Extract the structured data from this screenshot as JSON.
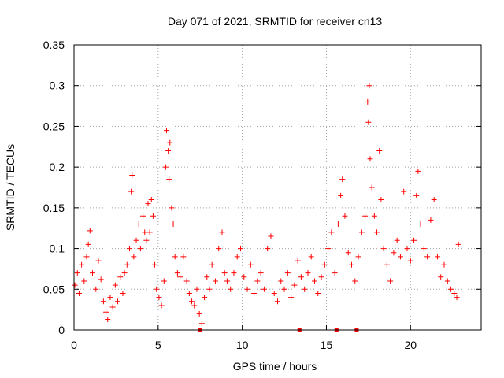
{
  "chart_data": {
    "type": "scatter",
    "title": "Day 071 of 2021, SRMTID for receiver cn13",
    "xlabel": "GPS time / hours",
    "ylabel": "SRMTID / TECUs",
    "xlim": [
      0,
      24.2
    ],
    "ylim": [
      0,
      0.35
    ],
    "x_ticks": [
      0,
      5,
      10,
      15,
      20
    ],
    "y_ticks": [
      0,
      0.05,
      0.1,
      0.15,
      0.2,
      0.25,
      0.3,
      0.35
    ],
    "grid": true,
    "marker": "+",
    "color": "#ff0000",
    "series": [
      {
        "name": "cn13",
        "points": [
          [
            0.05,
            0.055
          ],
          [
            0.2,
            0.07
          ],
          [
            0.3,
            0.045
          ],
          [
            0.45,
            0.08
          ],
          [
            0.6,
            0.06
          ],
          [
            0.75,
            0.09
          ],
          [
            0.85,
            0.105
          ],
          [
            0.95,
            0.122
          ],
          [
            1.1,
            0.07
          ],
          [
            1.3,
            0.05
          ],
          [
            1.45,
            0.085
          ],
          [
            1.6,
            0.062
          ],
          [
            1.75,
            0.035
          ],
          [
            1.9,
            0.022
          ],
          [
            2.0,
            0.013
          ],
          [
            2.15,
            0.04
          ],
          [
            2.3,
            0.028
          ],
          [
            2.45,
            0.055
          ],
          [
            2.6,
            0.035
          ],
          [
            2.75,
            0.065
          ],
          [
            2.9,
            0.045
          ],
          [
            3.0,
            0.07
          ],
          [
            3.15,
            0.08
          ],
          [
            3.3,
            0.1
          ],
          [
            3.4,
            0.17
          ],
          [
            3.45,
            0.19
          ],
          [
            3.55,
            0.09
          ],
          [
            3.7,
            0.11
          ],
          [
            3.85,
            0.13
          ],
          [
            3.95,
            0.1
          ],
          [
            4.1,
            0.14
          ],
          [
            4.2,
            0.12
          ],
          [
            4.3,
            0.11
          ],
          [
            4.4,
            0.155
          ],
          [
            4.5,
            0.12
          ],
          [
            4.6,
            0.16
          ],
          [
            4.7,
            0.14
          ],
          [
            4.8,
            0.08
          ],
          [
            4.9,
            0.05
          ],
          [
            5.05,
            0.04
          ],
          [
            5.2,
            0.03
          ],
          [
            5.35,
            0.06
          ],
          [
            5.45,
            0.2
          ],
          [
            5.5,
            0.245
          ],
          [
            5.6,
            0.22
          ],
          [
            5.65,
            0.185
          ],
          [
            5.7,
            0.23
          ],
          [
            5.8,
            0.15
          ],
          [
            5.9,
            0.13
          ],
          [
            6.0,
            0.09
          ],
          [
            6.15,
            0.07
          ],
          [
            6.3,
            0.065
          ],
          [
            6.5,
            0.09
          ],
          [
            6.7,
            0.06
          ],
          [
            6.85,
            0.045
          ],
          [
            7.0,
            0.035
          ],
          [
            7.15,
            0.03
          ],
          [
            7.3,
            0.05
          ],
          [
            7.45,
            0.02
          ],
          [
            7.6,
            0.008
          ],
          [
            7.75,
            0.04
          ],
          [
            7.9,
            0.065
          ],
          [
            8.05,
            0.05
          ],
          [
            8.2,
            0.08
          ],
          [
            8.4,
            0.06
          ],
          [
            8.6,
            0.1
          ],
          [
            8.8,
            0.12
          ],
          [
            8.95,
            0.07
          ],
          [
            9.1,
            0.06
          ],
          [
            9.3,
            0.05
          ],
          [
            9.5,
            0.07
          ],
          [
            9.7,
            0.09
          ],
          [
            9.9,
            0.1
          ],
          [
            10.1,
            0.065
          ],
          [
            10.3,
            0.05
          ],
          [
            10.5,
            0.08
          ],
          [
            10.7,
            0.045
          ],
          [
            10.9,
            0.06
          ],
          [
            11.1,
            0.07
          ],
          [
            11.3,
            0.05
          ],
          [
            11.5,
            0.1
          ],
          [
            11.7,
            0.115
          ],
          [
            11.9,
            0.045
          ],
          [
            12.1,
            0.035
          ],
          [
            12.3,
            0.06
          ],
          [
            12.5,
            0.05
          ],
          [
            12.7,
            0.07
          ],
          [
            12.9,
            0.04
          ],
          [
            13.1,
            0.055
          ],
          [
            13.3,
            0.085
          ],
          [
            13.5,
            0.065
          ],
          [
            13.7,
            0.05
          ],
          [
            13.9,
            0.07
          ],
          [
            14.1,
            0.09
          ],
          [
            14.3,
            0.06
          ],
          [
            14.5,
            0.045
          ],
          [
            14.7,
            0.065
          ],
          [
            14.9,
            0.08
          ],
          [
            15.1,
            0.1
          ],
          [
            15.3,
            0.12
          ],
          [
            15.5,
            0.07
          ],
          [
            15.7,
            0.13
          ],
          [
            15.85,
            0.165
          ],
          [
            15.95,
            0.185
          ],
          [
            16.1,
            0.14
          ],
          [
            16.3,
            0.095
          ],
          [
            16.5,
            0.08
          ],
          [
            16.7,
            0.06
          ],
          [
            16.9,
            0.09
          ],
          [
            17.1,
            0.12
          ],
          [
            17.3,
            0.14
          ],
          [
            17.45,
            0.28
          ],
          [
            17.5,
            0.255
          ],
          [
            17.55,
            0.3
          ],
          [
            17.6,
            0.21
          ],
          [
            17.7,
            0.175
          ],
          [
            17.85,
            0.14
          ],
          [
            18.0,
            0.12
          ],
          [
            18.15,
            0.22
          ],
          [
            18.25,
            0.16
          ],
          [
            18.4,
            0.1
          ],
          [
            18.6,
            0.08
          ],
          [
            18.8,
            0.06
          ],
          [
            19.0,
            0.095
          ],
          [
            19.2,
            0.11
          ],
          [
            19.4,
            0.09
          ],
          [
            19.6,
            0.17
          ],
          [
            19.8,
            0.1
          ],
          [
            20.0,
            0.085
          ],
          [
            20.2,
            0.11
          ],
          [
            20.35,
            0.165
          ],
          [
            20.45,
            0.195
          ],
          [
            20.6,
            0.13
          ],
          [
            20.8,
            0.1
          ],
          [
            21.0,
            0.09
          ],
          [
            21.2,
            0.135
          ],
          [
            21.4,
            0.16
          ],
          [
            21.6,
            0.09
          ],
          [
            21.8,
            0.065
          ],
          [
            22.0,
            0.08
          ],
          [
            22.2,
            0.06
          ],
          [
            22.4,
            0.05
          ],
          [
            22.6,
            0.045
          ],
          [
            22.75,
            0.04
          ],
          [
            22.85,
            0.105
          ]
        ],
        "gaps_hours": [
          7.5,
          13.4,
          15.6,
          16.8
        ]
      }
    ]
  }
}
